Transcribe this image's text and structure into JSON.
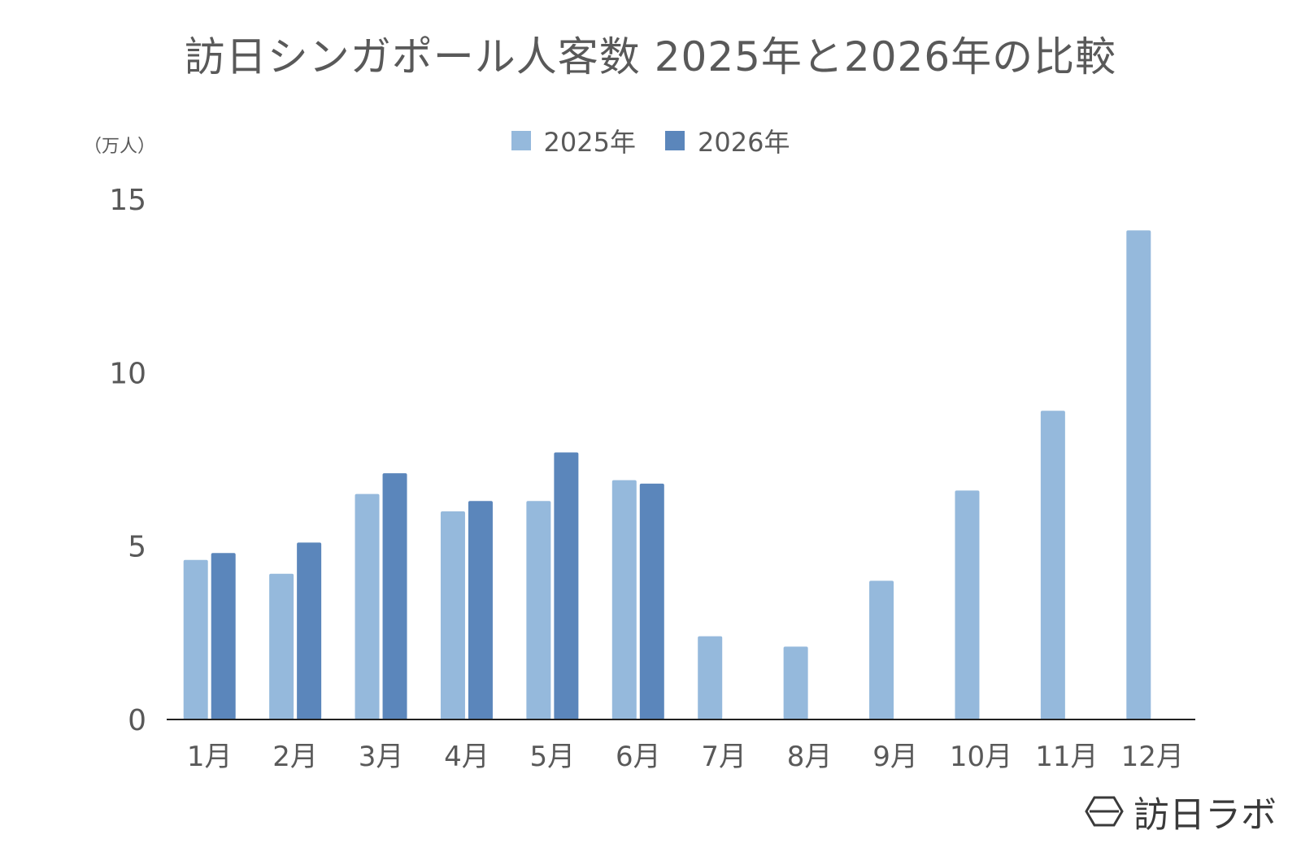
{
  "chart_data": {
    "type": "bar",
    "title": "訪日シンガポール人客数 2025年と2026年の比較",
    "ylabel": "（万人）",
    "xlabel": "",
    "categories": [
      "1月",
      "2月",
      "3月",
      "4月",
      "5月",
      "6月",
      "7月",
      "8月",
      "9月",
      "10月",
      "11月",
      "12月"
    ],
    "series": [
      {
        "name": "2025年",
        "color": "#95b9dc",
        "values": [
          4.6,
          4.2,
          6.5,
          6.0,
          6.3,
          6.9,
          2.4,
          2.1,
          4.0,
          6.6,
          8.9,
          14.1
        ]
      },
      {
        "name": "2026年",
        "color": "#5b86bb",
        "values": [
          4.8,
          5.1,
          7.1,
          6.3,
          7.7,
          6.8,
          null,
          null,
          null,
          null,
          null,
          null
        ]
      }
    ],
    "ylim": [
      0,
      15
    ],
    "yticks": [
      0,
      5,
      10,
      15
    ],
    "grid": false,
    "legend_position": "top-center"
  },
  "watermark": {
    "text": "訪日ラボ",
    "icon": "hexagon-logo-icon"
  }
}
